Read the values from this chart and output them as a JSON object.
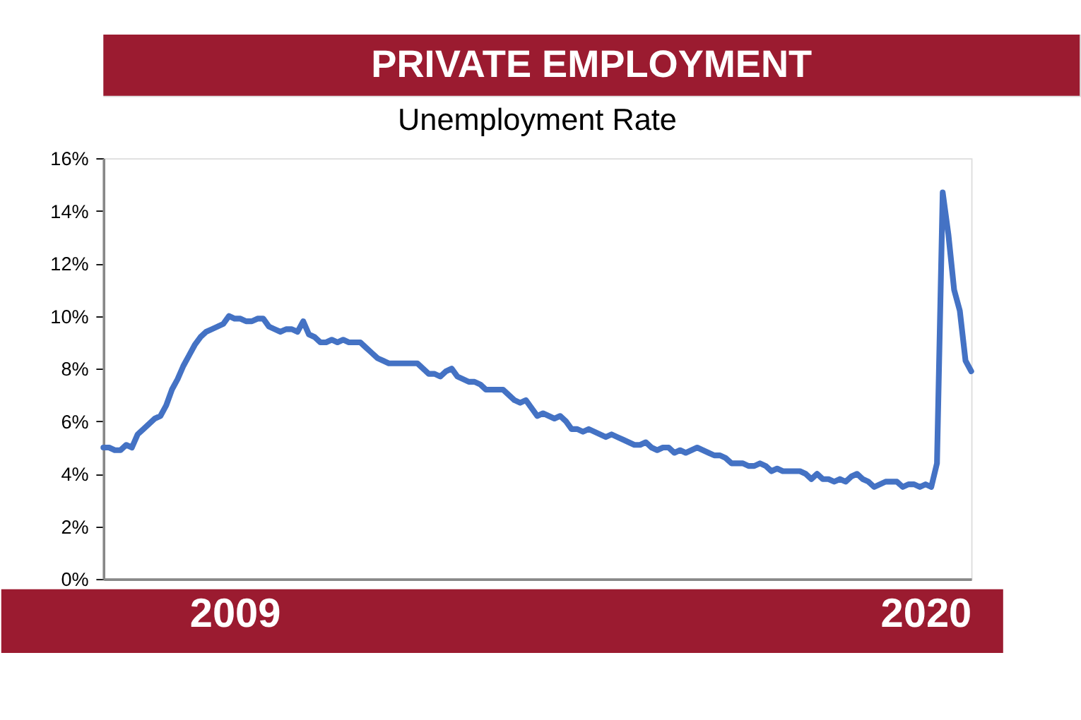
{
  "chart_data": {
    "type": "line",
    "title": "PRIVATE EMPLOYMENT",
    "subtitle": "Unemployment Rate",
    "categories": [
      null,
      null,
      null,
      null,
      null,
      null,
      null,
      null,
      null,
      null,
      null,
      null,
      null,
      null,
      null,
      null,
      null,
      null,
      null,
      null,
      null,
      null,
      null,
      "2009",
      null,
      null,
      null,
      null,
      null,
      null,
      null,
      null,
      null,
      null,
      null,
      null,
      null,
      null,
      null,
      null,
      null,
      null,
      null,
      null,
      null,
      null,
      null,
      null,
      null,
      null,
      null,
      null,
      null,
      null,
      null,
      null,
      null,
      null,
      null,
      null,
      null,
      null,
      null,
      null,
      null,
      null,
      null,
      null,
      null,
      null,
      null,
      null,
      null,
      null,
      null,
      null,
      null,
      null,
      null,
      null,
      null,
      null,
      null,
      null,
      null,
      null,
      null,
      null,
      null,
      null,
      null,
      null,
      null,
      null,
      null,
      null,
      null,
      null,
      null,
      null,
      null,
      null,
      null,
      null,
      null,
      null,
      null,
      null,
      null,
      null,
      null,
      null,
      null,
      null,
      null,
      null,
      null,
      null,
      null,
      null,
      null,
      null,
      null,
      null,
      null,
      null,
      null,
      null,
      null,
      null,
      null,
      null,
      null,
      null,
      null,
      null,
      null,
      null,
      null,
      null,
      null,
      null,
      null,
      null,
      "2020",
      null,
      null,
      null,
      null,
      null,
      null,
      null,
      null
    ],
    "series": [
      {
        "color": "#4472c4",
        "values": [
          5.0,
          5.0,
          4.9,
          4.9,
          5.1,
          5.0,
          5.5,
          5.7,
          5.9,
          6.1,
          6.2,
          6.6,
          7.2,
          7.6,
          8.1,
          8.5,
          8.9,
          9.2,
          9.4,
          9.5,
          9.6,
          9.7,
          10.0,
          9.9,
          9.9,
          9.8,
          9.8,
          9.9,
          9.9,
          9.6,
          9.5,
          9.4,
          9.5,
          9.5,
          9.4,
          9.8,
          9.3,
          9.2,
          9.0,
          9.0,
          9.1,
          9.0,
          9.1,
          9.0,
          9.0,
          9.0,
          8.8,
          8.6,
          8.4,
          8.3,
          8.2,
          8.2,
          8.2,
          8.2,
          8.2,
          8.2,
          8.0,
          7.8,
          7.8,
          7.7,
          7.9,
          8.0,
          7.7,
          7.6,
          7.5,
          7.5,
          7.4,
          7.2,
          7.2,
          7.2,
          7.2,
          7.0,
          6.8,
          6.7,
          6.8,
          6.5,
          6.2,
          6.3,
          6.2,
          6.1,
          6.2,
          6.0,
          5.7,
          5.7,
          5.6,
          5.7,
          5.6,
          5.5,
          5.4,
          5.5,
          5.4,
          5.3,
          5.2,
          5.1,
          5.1,
          5.2,
          5.0,
          4.9,
          5.0,
          5.0,
          4.8,
          4.9,
          4.8,
          4.9,
          5.0,
          4.9,
          4.8,
          4.7,
          4.7,
          4.6,
          4.4,
          4.4,
          4.4,
          4.3,
          4.3,
          4.4,
          4.3,
          4.1,
          4.2,
          4.1,
          4.1,
          4.1,
          4.1,
          4.0,
          3.8,
          4.0,
          3.8,
          3.8,
          3.7,
          3.8,
          3.7,
          3.9,
          4.0,
          3.8,
          3.7,
          3.5,
          3.6,
          3.7,
          3.7,
          3.7,
          3.5,
          3.6,
          3.6,
          3.5,
          3.6,
          3.5,
          4.4,
          14.7,
          13.1,
          11.0,
          10.2,
          8.3,
          7.9
        ]
      }
    ],
    "ylim": [
      0,
      16
    ],
    "yticks": [
      {
        "value": 0,
        "label": "0%"
      },
      {
        "value": 2,
        "label": "2%"
      },
      {
        "value": 4,
        "label": "4%"
      },
      {
        "value": 6,
        "label": "6%"
      },
      {
        "value": 8,
        "label": "8%"
      },
      {
        "value": 10,
        "label": "10%"
      },
      {
        "value": 12,
        "label": "12%"
      },
      {
        "value": 14,
        "label": "14%"
      },
      {
        "value": 16,
        "label": "16%"
      }
    ]
  }
}
